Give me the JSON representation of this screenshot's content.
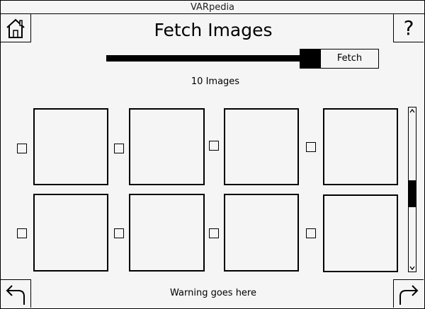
{
  "window": {
    "title": "VARpedia"
  },
  "header": {
    "title": "Fetch Images",
    "home_icon": "home-icon",
    "help_label": "?"
  },
  "fetch": {
    "button_label": "Fetch",
    "slider_level": 1.0
  },
  "status": {
    "image_count": "10 Images"
  },
  "images": [
    {
      "selected": false
    },
    {
      "selected": false
    },
    {
      "selected": false
    },
    {
      "selected": false
    },
    {
      "selected": false
    },
    {
      "selected": false
    },
    {
      "selected": false
    },
    {
      "selected": false
    }
  ],
  "scroll": {
    "position_fraction": 0.5
  },
  "footer": {
    "warning": "Warning goes here",
    "back_icon": "back-arrow-icon",
    "next_icon": "forward-arrow-icon"
  }
}
